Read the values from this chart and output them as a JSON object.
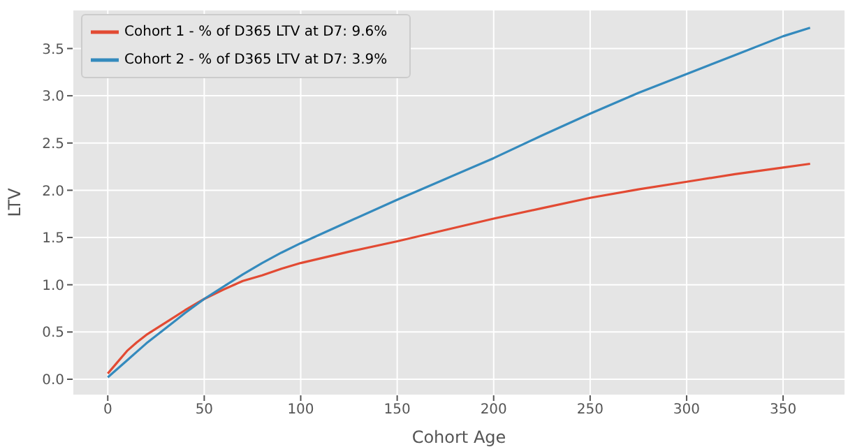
{
  "chart_data": {
    "type": "line",
    "xlabel": "Cohort Age",
    "ylabel": "LTV",
    "legend": "top left",
    "grid": true,
    "marker": "none",
    "line_style": "solid",
    "xlim": [
      -18.2,
      382.2
    ],
    "xticks": [
      0,
      50,
      100,
      150,
      200,
      250,
      300,
      350
    ],
    "ylim": [
      -0.17,
      3.91
    ],
    "yticks": [
      {
        "value": 0,
        "label": "0.0"
      },
      {
        "value": 0.5,
        "label": "0.5"
      },
      {
        "value": 1,
        "label": "1.0"
      },
      {
        "value": 1.5,
        "label": "1.5"
      },
      {
        "value": 2,
        "label": "2.0"
      },
      {
        "value": 2.5,
        "label": "2.5"
      },
      {
        "value": 3,
        "label": "3.0"
      },
      {
        "value": 3.5,
        "label": "3.5"
      }
    ],
    "series": [
      {
        "name": "Cohort 1 - % of D365 LTV at D7: 9.6%",
        "color": "#e24a33",
        "x": [
          0,
          5,
          10,
          15,
          20,
          30,
          40,
          50,
          60,
          70,
          80,
          90,
          100,
          125,
          150,
          175,
          200,
          225,
          250,
          275,
          300,
          325,
          350,
          364
        ],
        "values": [
          0.06,
          0.18,
          0.3,
          0.39,
          0.47,
          0.6,
          0.73,
          0.85,
          0.95,
          1.04,
          1.1,
          1.17,
          1.23,
          1.35,
          1.46,
          1.58,
          1.7,
          1.81,
          1.92,
          2.01,
          2.09,
          2.17,
          2.24,
          2.28
        ]
      },
      {
        "name": "Cohort 2 - % of D365 LTV at D7: 3.9%",
        "color": "#348abd",
        "x": [
          0,
          10,
          20,
          30,
          40,
          50,
          60,
          70,
          80,
          90,
          100,
          125,
          150,
          175,
          200,
          225,
          250,
          275,
          300,
          325,
          350,
          364
        ],
        "values": [
          0.02,
          0.2,
          0.38,
          0.54,
          0.7,
          0.85,
          0.98,
          1.11,
          1.23,
          1.34,
          1.44,
          1.67,
          1.9,
          2.12,
          2.34,
          2.58,
          2.81,
          3.03,
          3.23,
          3.43,
          3.63,
          3.72
        ]
      }
    ]
  }
}
